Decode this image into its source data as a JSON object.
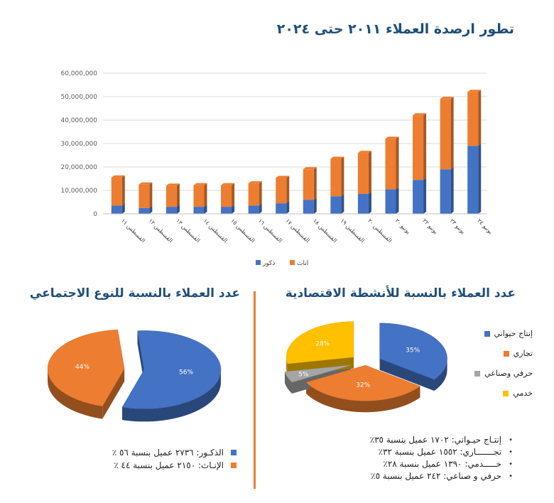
{
  "main_title": "تطور ارصدة العملاء ٢٠١١ حتى ٢٠٢٤",
  "econ_title": "عدد العملاء بالنسبة للأنشطة الاقتصادية",
  "gender_title": "عدد العملاء بالنسبة للنوع الاجتماعي",
  "colors": {
    "blue": "#4472c4",
    "orange": "#ed7d31",
    "gray": "#a5a5a5",
    "yellow": "#ffc000",
    "navy": "#1f4e79"
  },
  "econ_list": [
    "إنتـاج حيـواني: ١٧٠٢ عميل بنسبة ٣٥٪",
    "تجـــــــاري: ١٥٥٢ عميل بنسبة ٣٢٪",
    "خـــــدمي: ١٣٩٠ عميل بنسبة ٢٨٪",
    "حرفي و صناعي: ٢٤٢ عميل بنسبة ٥٪"
  ],
  "gender_list": [
    "الذكـور: ٢٧٣٦ عميل بنسبة ٥٦ ٪",
    "الإنـاث: ٢١٥٠ عميل بنسبة ٤٤ ٪"
  ],
  "chart_data": [
    {
      "type": "bar",
      "stacked": true,
      "categories": [
        "القسطس ١١",
        "القسطس ١٢",
        "القسطس ١٣",
        "القسطس ١٤",
        "القسطس ١٥",
        "القسطس ١٦",
        "القسطس ١٧",
        "القسطس ١٨",
        "القسطس ١٩",
        "القسطس ٢٠",
        "يونيو ٢٠",
        "يونيو ٢٢",
        "يونيو ٢٣",
        "يونيو ٢٤"
      ],
      "series": [
        {
          "name": "ذكور",
          "color": "#4472c4",
          "values": [
            3500000,
            2500000,
            3000000,
            3000000,
            3000000,
            3500000,
            4500000,
            6000000,
            7500000,
            8500000,
            10500000,
            14500000,
            19000000,
            29000000
          ]
        },
        {
          "name": "اناث",
          "color": "#ed7d31",
          "values": [
            12000000,
            10000000,
            9000000,
            9200000,
            9200000,
            9500000,
            10800000,
            13000000,
            16000000,
            17500000,
            21500000,
            27500000,
            30000000,
            23000000
          ]
        }
      ],
      "ylim": [
        0,
        60000000
      ],
      "yticks": [
        "0",
        "10,000,000",
        "20,000,000",
        "30,000,000",
        "40,000,000",
        "50,000,000",
        "60,000,000"
      ],
      "legend": [
        "ذكور",
        "اناث"
      ],
      "legend_position": "bottom",
      "grid": true
    },
    {
      "type": "pie",
      "style": "3d-exploded",
      "labels": [
        "إنتاج حيواني",
        "تجاري",
        "حرفي وصناعي",
        "خدمي"
      ],
      "values": [
        35,
        32,
        5,
        28
      ],
      "data_labels": [
        "35%",
        "32%",
        "5%",
        "28%"
      ],
      "colors": [
        "#4472c4",
        "#ed7d31",
        "#a5a5a5",
        "#ffc000"
      ],
      "legend_position": "right"
    },
    {
      "type": "pie",
      "style": "3d-exploded",
      "labels": [
        "الذكور",
        "الإناث"
      ],
      "values": [
        56,
        44
      ],
      "data_labels": [
        "56%",
        "44%"
      ],
      "colors": [
        "#4472c4",
        "#ed7d31"
      ]
    }
  ]
}
